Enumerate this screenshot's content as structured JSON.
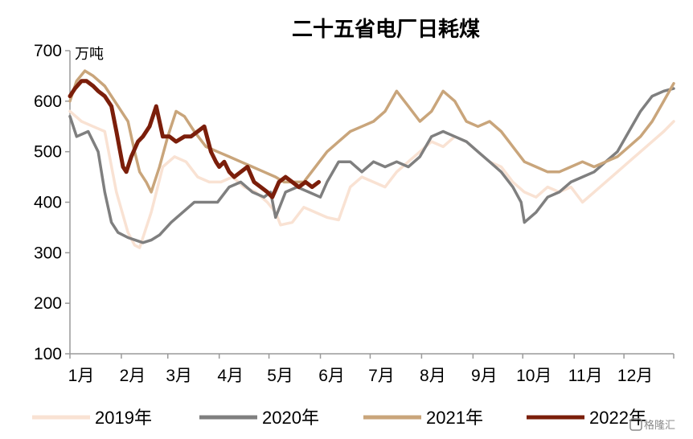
{
  "chart_data": {
    "type": "line",
    "title": "二十五省电厂日耗煤",
    "ylabel": "万吨",
    "xlabel": "",
    "ylim": [
      100,
      700
    ],
    "yticks": [
      100,
      200,
      300,
      400,
      500,
      600,
      700
    ],
    "x_unit": "day_of_year",
    "xlim": [
      1,
      365
    ],
    "x_tick_labels": [
      "1月",
      "2月",
      "3月",
      "4月",
      "5月",
      "6月",
      "7月",
      "8月",
      "9月",
      "10月",
      "11月",
      "12月"
    ],
    "x_tick_positions": [
      1,
      32,
      60,
      91,
      121,
      152,
      182,
      213,
      244,
      274,
      305,
      335
    ],
    "grid": false,
    "legend_position": "bottom",
    "series": [
      {
        "name": "2019年",
        "color": "#f9e2d3",
        "x": [
          1,
          8,
          15,
          22,
          29,
          36,
          40,
          43,
          50,
          57,
          64,
          71,
          78,
          85,
          92,
          99,
          106,
          113,
          120,
          125,
          128,
          135,
          142,
          149,
          156,
          163,
          170,
          177,
          184,
          191,
          198,
          205,
          212,
          219,
          226,
          233,
          240,
          247,
          254,
          261,
          268,
          275,
          282,
          289,
          296,
          303,
          310,
          317,
          324,
          331,
          338,
          345,
          352,
          359,
          365
        ],
        "values": [
          580,
          560,
          550,
          540,
          420,
          340,
          315,
          310,
          380,
          470,
          490,
          480,
          450,
          440,
          440,
          450,
          430,
          420,
          400,
          380,
          355,
          360,
          390,
          380,
          370,
          365,
          430,
          450,
          440,
          430,
          460,
          480,
          500,
          520,
          510,
          530,
          520,
          500,
          480,
          470,
          440,
          420,
          410,
          430,
          420,
          430,
          400,
          420,
          440,
          460,
          480,
          500,
          520,
          540,
          560
        ]
      },
      {
        "name": "2020年",
        "color": "#7f7f7f",
        "x": [
          1,
          5,
          12,
          18,
          22,
          26,
          30,
          36,
          45,
          50,
          55,
          62,
          69,
          76,
          83,
          90,
          97,
          104,
          111,
          118,
          122,
          125,
          131,
          138,
          145,
          152,
          156,
          163,
          170,
          177,
          184,
          191,
          198,
          205,
          212,
          219,
          226,
          233,
          240,
          247,
          254,
          261,
          268,
          273,
          275,
          282,
          289,
          296,
          303,
          310,
          317,
          324,
          331,
          338,
          345,
          352,
          359,
          365
        ],
        "values": [
          570,
          530,
          540,
          500,
          420,
          360,
          340,
          330,
          320,
          325,
          335,
          360,
          380,
          400,
          400,
          400,
          430,
          440,
          420,
          410,
          420,
          370,
          420,
          430,
          420,
          410,
          440,
          480,
          480,
          460,
          480,
          470,
          480,
          470,
          490,
          530,
          540,
          530,
          520,
          500,
          480,
          460,
          430,
          400,
          360,
          380,
          410,
          420,
          440,
          450,
          460,
          480,
          500,
          540,
          580,
          610,
          620,
          625
        ]
      },
      {
        "name": "2021年",
        "color": "#c9a57b",
        "x": [
          1,
          5,
          10,
          15,
          22,
          30,
          36,
          40,
          43,
          47,
          50,
          55,
          60,
          65,
          70,
          76,
          83,
          90,
          97,
          104,
          111,
          118,
          125,
          130,
          135,
          142,
          149,
          156,
          163,
          170,
          177,
          184,
          191,
          198,
          205,
          212,
          219,
          226,
          233,
          240,
          247,
          254,
          261,
          268,
          275,
          282,
          289,
          296,
          303,
          310,
          317,
          324,
          331,
          338,
          345,
          352,
          359,
          365
        ],
        "values": [
          600,
          640,
          660,
          650,
          630,
          590,
          560,
          500,
          460,
          440,
          420,
          470,
          530,
          580,
          570,
          540,
          510,
          500,
          490,
          480,
          470,
          460,
          450,
          440,
          440,
          440,
          470,
          500,
          520,
          540,
          550,
          560,
          580,
          620,
          590,
          560,
          580,
          620,
          600,
          560,
          550,
          560,
          540,
          510,
          480,
          470,
          460,
          460,
          470,
          480,
          470,
          480,
          490,
          510,
          530,
          560,
          600,
          635
        ]
      },
      {
        "name": "2022年",
        "color": "#7b1e0a",
        "x": [
          1,
          4,
          8,
          11,
          15,
          18,
          22,
          26,
          29,
          33,
          35,
          38,
          42,
          45,
          49,
          53,
          57,
          61,
          65,
          70,
          74,
          78,
          82,
          86,
          89,
          91,
          94,
          97,
          100,
          104,
          108,
          112,
          116,
          120,
          123,
          127,
          131,
          135,
          139,
          143,
          147,
          151
        ],
        "values": [
          610,
          625,
          640,
          640,
          630,
          620,
          610,
          590,
          540,
          470,
          460,
          490,
          520,
          530,
          550,
          590,
          530,
          530,
          520,
          530,
          530,
          540,
          550,
          500,
          480,
          470,
          480,
          460,
          450,
          460,
          470,
          440,
          430,
          420,
          410,
          440,
          450,
          440,
          430,
          440,
          430,
          440
        ]
      }
    ]
  },
  "watermark": "格隆汇"
}
